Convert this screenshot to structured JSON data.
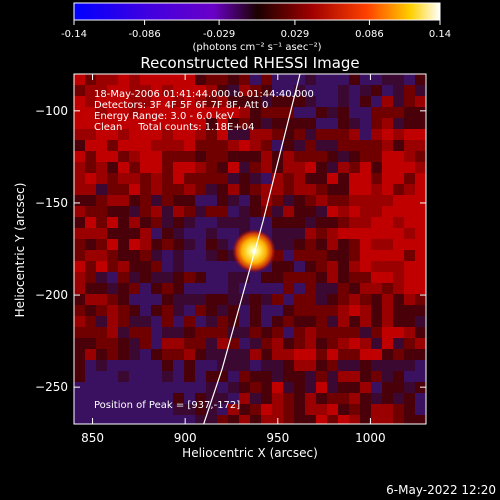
{
  "colorbar": {
    "tick_labels": [
      "-0.14",
      "-0.086",
      "-0.029",
      "0.029",
      "0.086",
      "0.14"
    ],
    "ticks": [
      -0.14,
      -0.086,
      -0.029,
      0.029,
      0.086,
      0.14
    ],
    "range": [
      -0.14,
      0.14
    ],
    "units": "(photons cm⁻² s⁻¹ asec⁻²)",
    "colors": [
      "#0000ff",
      "#6a00c8",
      "#2a0000",
      "#b40000",
      "#ff5000",
      "#ffd000",
      "#ffffff"
    ]
  },
  "plot": {
    "title": "Reconstructed RHESSI Image",
    "xlabel": "Heliocentric X (arcsec)",
    "ylabel": "Heliocentric Y (arcsec)",
    "x_range": [
      840,
      1030
    ],
    "y_range": [
      -270,
      -80
    ],
    "x_ticks": [
      850,
      900,
      950,
      1000
    ],
    "x_tick_labels": [
      "850",
      "900",
      "950",
      "1000"
    ],
    "y_ticks": [
      -100,
      -150,
      -200,
      -250
    ],
    "y_tick_labels": [
      "−100",
      "−150",
      "−200",
      "−250"
    ]
  },
  "annotations": {
    "line1": "18-May-2006 01:41:44.000 to 01:44:40.000",
    "line2": "Detectors: 3F 4F 5F 6F 7F 8F, Att 0",
    "line3": "Energy Range: 3.0 - 6.0 keV",
    "line4": "Clean     Total counts: 1.18E+04",
    "peak": "Position of Peak = [937,-172]"
  },
  "footer": {
    "timestamp": "6-May-2022 12:20"
  },
  "chart_data": {
    "type": "heatmap",
    "title": "Reconstructed RHESSI Image",
    "xlabel": "Heliocentric X (arcsec)",
    "ylabel": "Heliocentric Y (arcsec)",
    "xlim": [
      840,
      1030
    ],
    "ylim": [
      -270,
      -80
    ],
    "peak": {
      "x": 937,
      "y": -172
    },
    "colorscale_range": [
      -0.14,
      0.14
    ],
    "limb_curve": {
      "x": [
        962,
        952,
        942,
        931,
        920,
        910
      ],
      "y": [
        -80,
        -120,
        -160,
        -200,
        -240,
        -270
      ]
    }
  }
}
